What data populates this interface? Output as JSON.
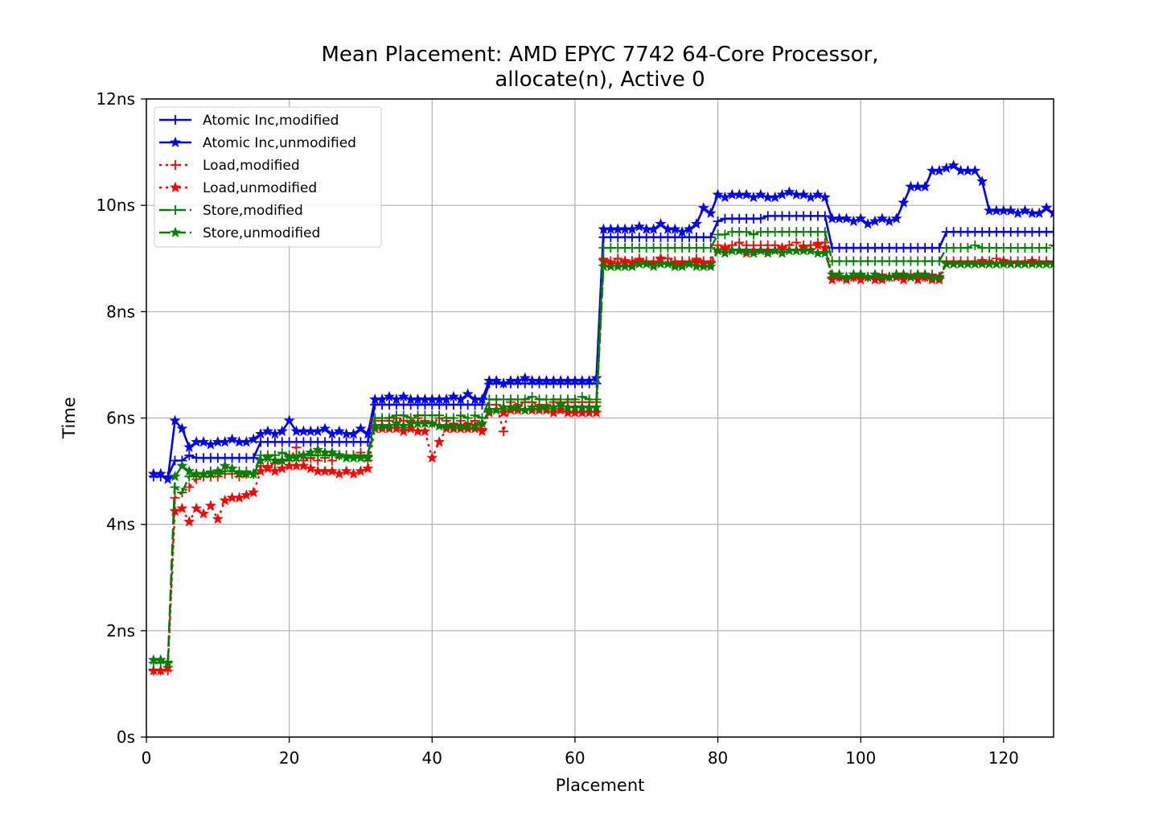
{
  "chart_data": {
    "type": "line",
    "title_line1": "Mean Placement: AMD EPYC 7742 64-Core Processor,",
    "title_line2": "allocate(n), Active 0",
    "xlabel": "Placement",
    "ylabel": "Time",
    "xlim": [
      0,
      127
    ],
    "ylim": [
      0,
      12
    ],
    "xticks": [
      0,
      20,
      40,
      60,
      80,
      100,
      120
    ],
    "xtick_labels": [
      "0",
      "20",
      "40",
      "60",
      "80",
      "100",
      "120"
    ],
    "yticks": [
      0,
      2,
      4,
      6,
      8,
      10,
      12
    ],
    "ytick_labels": [
      "0s",
      "2ns",
      "4ns",
      "6ns",
      "8ns",
      "10ns",
      "12ns"
    ],
    "grid": true,
    "legend_position": "top-left",
    "x": [
      1,
      2,
      3,
      4,
      5,
      6,
      7,
      8,
      9,
      10,
      11,
      12,
      13,
      14,
      15,
      16,
      17,
      18,
      19,
      20,
      21,
      22,
      23,
      24,
      25,
      26,
      27,
      28,
      29,
      30,
      31,
      32,
      33,
      34,
      35,
      36,
      37,
      38,
      39,
      40,
      41,
      42,
      43,
      44,
      45,
      46,
      47,
      48,
      49,
      50,
      51,
      52,
      53,
      54,
      55,
      56,
      57,
      58,
      59,
      60,
      61,
      62,
      63,
      64,
      65,
      66,
      67,
      68,
      69,
      70,
      71,
      72,
      73,
      74,
      75,
      76,
      77,
      78,
      79,
      80,
      81,
      82,
      83,
      84,
      85,
      86,
      87,
      88,
      89,
      90,
      91,
      92,
      93,
      94,
      95,
      96,
      97,
      98,
      99,
      100,
      101,
      102,
      103,
      104,
      105,
      106,
      107,
      108,
      109,
      110,
      111,
      112,
      113,
      114,
      115,
      116,
      117,
      118,
      119,
      120,
      121,
      122,
      123,
      124,
      125,
      126,
      127
    ],
    "series": [
      {
        "name": "Atomic Inc,modified",
        "color": "#0000ff",
        "linestyle": "solid",
        "marker": "plus",
        "values": [
          4.9,
          4.9,
          4.9,
          5.2,
          5.2,
          5.3,
          5.25,
          5.25,
          5.25,
          5.25,
          5.25,
          5.25,
          5.25,
          5.25,
          5.25,
          5.55,
          5.55,
          5.55,
          5.55,
          5.55,
          5.55,
          5.55,
          5.55,
          5.55,
          5.55,
          5.55,
          5.55,
          5.55,
          5.55,
          5.55,
          5.55,
          6.25,
          6.25,
          6.25,
          6.25,
          6.25,
          6.25,
          6.25,
          6.25,
          6.25,
          6.25,
          6.25,
          6.25,
          6.25,
          6.25,
          6.25,
          6.25,
          6.65,
          6.65,
          6.65,
          6.65,
          6.65,
          6.65,
          6.65,
          6.65,
          6.65,
          6.65,
          6.65,
          6.65,
          6.65,
          6.65,
          6.65,
          6.65,
          9.4,
          9.4,
          9.4,
          9.4,
          9.4,
          9.4,
          9.4,
          9.4,
          9.4,
          9.4,
          9.4,
          9.4,
          9.4,
          9.4,
          9.4,
          9.4,
          9.7,
          9.75,
          9.75,
          9.75,
          9.75,
          9.75,
          9.75,
          9.8,
          9.8,
          9.8,
          9.8,
          9.8,
          9.8,
          9.8,
          9.8,
          9.8,
          9.2,
          9.2,
          9.2,
          9.2,
          9.2,
          9.2,
          9.2,
          9.2,
          9.2,
          9.2,
          9.2,
          9.2,
          9.2,
          9.2,
          9.2,
          9.2,
          9.5,
          9.5,
          9.5,
          9.5,
          9.5,
          9.5,
          9.5,
          9.5,
          9.5,
          9.5,
          9.5,
          9.5,
          9.5,
          9.5,
          9.5,
          9.5
        ]
      },
      {
        "name": "Atomic Inc,unmodified",
        "color": "#0000ff",
        "linestyle": "solid",
        "marker": "star",
        "values": [
          4.95,
          4.95,
          4.85,
          5.95,
          5.8,
          5.45,
          5.55,
          5.55,
          5.5,
          5.55,
          5.55,
          5.6,
          5.55,
          5.55,
          5.6,
          5.7,
          5.75,
          5.7,
          5.75,
          5.95,
          5.75,
          5.75,
          5.75,
          5.75,
          5.8,
          5.7,
          5.75,
          5.7,
          5.7,
          5.8,
          5.7,
          6.35,
          6.35,
          6.4,
          6.35,
          6.4,
          6.35,
          6.35,
          6.35,
          6.35,
          6.35,
          6.35,
          6.4,
          6.35,
          6.45,
          6.35,
          6.35,
          6.7,
          6.7,
          6.65,
          6.7,
          6.7,
          6.75,
          6.7,
          6.7,
          6.7,
          6.7,
          6.7,
          6.7,
          6.7,
          6.7,
          6.7,
          6.75,
          9.55,
          9.55,
          9.55,
          9.55,
          9.55,
          9.6,
          9.55,
          9.55,
          9.65,
          9.55,
          9.55,
          9.5,
          9.55,
          9.65,
          9.95,
          9.85,
          10.2,
          10.15,
          10.2,
          10.2,
          10.2,
          10.15,
          10.2,
          10.15,
          10.15,
          10.2,
          10.25,
          10.2,
          10.2,
          10.15,
          10.2,
          10.15,
          9.75,
          9.75,
          9.75,
          9.7,
          9.75,
          9.65,
          9.7,
          9.75,
          9.7,
          9.75,
          10.05,
          10.35,
          10.35,
          10.35,
          10.65,
          10.65,
          10.7,
          10.75,
          10.65,
          10.65,
          10.65,
          10.45,
          9.9,
          9.9,
          9.9,
          9.9,
          9.85,
          9.9,
          9.85,
          9.85,
          9.95,
          9.85
        ]
      },
      {
        "name": "Load,modified",
        "color": "#ff0000",
        "linestyle": "dotted",
        "marker": "plus",
        "values": [
          1.25,
          1.25,
          1.25,
          4.5,
          4.6,
          4.7,
          4.85,
          4.9,
          4.9,
          4.9,
          4.95,
          4.95,
          4.9,
          4.95,
          4.95,
          5.1,
          5.1,
          5.15,
          5.2,
          5.2,
          5.45,
          5.2,
          5.25,
          5.2,
          5.25,
          5.2,
          5.3,
          5.3,
          5.3,
          5.35,
          5.2,
          5.95,
          5.95,
          5.95,
          6.0,
          5.95,
          5.95,
          6.0,
          5.95,
          5.9,
          6.0,
          5.95,
          5.9,
          5.95,
          5.9,
          5.95,
          5.8,
          6.25,
          6.25,
          5.75,
          6.3,
          6.25,
          6.3,
          6.3,
          6.25,
          6.25,
          6.3,
          6.3,
          6.3,
          6.3,
          6.3,
          6.3,
          6.3,
          9.0,
          8.95,
          9.0,
          8.95,
          8.95,
          9.0,
          8.95,
          8.95,
          9.0,
          9.0,
          8.95,
          8.95,
          8.95,
          9.0,
          8.95,
          8.95,
          9.25,
          9.2,
          9.25,
          9.3,
          9.25,
          9.25,
          9.25,
          9.25,
          9.25,
          9.2,
          9.25,
          9.3,
          9.25,
          9.25,
          9.3,
          9.3,
          8.65,
          8.65,
          8.65,
          8.65,
          8.7,
          8.65,
          8.65,
          8.7,
          8.65,
          8.7,
          8.65,
          8.7,
          8.65,
          8.65,
          8.7,
          8.65,
          8.95,
          8.95,
          8.95,
          8.95,
          8.95,
          8.95,
          8.95,
          9.0,
          8.95,
          8.95,
          8.95,
          8.95,
          8.95,
          8.95,
          8.95,
          8.95
        ]
      },
      {
        "name": "Load,unmodified",
        "color": "#ff0000",
        "linestyle": "dotted",
        "marker": "star",
        "values": [
          1.25,
          1.25,
          1.3,
          4.25,
          4.3,
          4.05,
          4.3,
          4.2,
          4.35,
          4.1,
          4.45,
          4.5,
          4.5,
          4.55,
          4.6,
          5.0,
          5.05,
          5.0,
          5.05,
          5.1,
          5.1,
          5.1,
          5.05,
          5.0,
          5.0,
          5.0,
          4.95,
          5.0,
          4.95,
          5.0,
          5.05,
          5.8,
          5.8,
          5.8,
          5.8,
          5.75,
          5.8,
          5.75,
          5.75,
          5.25,
          5.55,
          5.8,
          5.8,
          5.8,
          5.8,
          5.8,
          5.75,
          6.1,
          6.15,
          6.1,
          6.15,
          6.15,
          6.15,
          6.15,
          6.15,
          6.15,
          6.1,
          6.15,
          6.1,
          6.1,
          6.1,
          6.1,
          6.1,
          8.95,
          8.9,
          8.9,
          8.95,
          8.9,
          8.95,
          8.9,
          8.9,
          9.0,
          8.9,
          8.9,
          8.9,
          8.9,
          8.95,
          8.9,
          8.9,
          9.15,
          9.2,
          9.15,
          9.15,
          9.1,
          9.15,
          9.15,
          9.15,
          9.15,
          9.2,
          9.15,
          9.15,
          9.2,
          9.15,
          9.25,
          9.2,
          8.6,
          8.65,
          8.6,
          8.65,
          8.6,
          8.65,
          8.6,
          8.6,
          8.65,
          8.65,
          8.6,
          8.65,
          8.6,
          8.65,
          8.6,
          8.6,
          8.9,
          8.9,
          8.9,
          8.9,
          8.9,
          8.95,
          8.9,
          8.9,
          8.95,
          8.9,
          8.9,
          8.9,
          8.95,
          8.9,
          8.9,
          8.9
        ]
      },
      {
        "name": "Store,modified",
        "color": "#008000",
        "linestyle": "dashed",
        "marker": "plus",
        "values": [
          1.4,
          1.4,
          1.4,
          4.7,
          4.6,
          4.9,
          4.95,
          4.95,
          5.0,
          4.95,
          5.0,
          5.0,
          5.0,
          5.0,
          4.95,
          5.3,
          5.3,
          5.3,
          5.35,
          5.3,
          5.3,
          5.3,
          5.3,
          5.3,
          5.3,
          5.3,
          5.3,
          5.3,
          5.3,
          5.3,
          5.3,
          6.0,
          6.0,
          6.0,
          6.05,
          6.05,
          6.0,
          6.05,
          6.05,
          6.05,
          6.05,
          6.0,
          6.0,
          6.05,
          6.0,
          6.05,
          6.0,
          6.35,
          6.35,
          6.35,
          6.35,
          6.35,
          6.35,
          6.4,
          6.35,
          6.35,
          6.35,
          6.35,
          6.35,
          6.35,
          6.4,
          6.35,
          6.35,
          9.2,
          9.2,
          9.2,
          9.2,
          9.2,
          9.2,
          9.2,
          9.2,
          9.2,
          9.2,
          9.2,
          9.2,
          9.2,
          9.2,
          9.2,
          9.2,
          9.45,
          9.45,
          9.5,
          9.5,
          9.5,
          9.45,
          9.5,
          9.5,
          9.5,
          9.5,
          9.5,
          9.5,
          9.5,
          9.5,
          9.5,
          9.5,
          8.95,
          8.95,
          8.95,
          8.95,
          8.95,
          8.95,
          8.95,
          8.95,
          8.95,
          8.95,
          8.95,
          8.95,
          8.95,
          8.95,
          8.95,
          8.95,
          9.2,
          9.2,
          9.2,
          9.2,
          9.25,
          9.2,
          9.2,
          9.2,
          9.2,
          9.2,
          9.2,
          9.2,
          9.2,
          9.2,
          9.2,
          9.25
        ]
      },
      {
        "name": "Store,unmodified",
        "color": "#008000",
        "linestyle": "dashed",
        "marker": "star",
        "values": [
          1.45,
          1.45,
          1.4,
          4.9,
          5.1,
          5.0,
          4.95,
          4.95,
          4.95,
          5.0,
          5.1,
          5.05,
          4.95,
          4.95,
          4.95,
          5.2,
          5.25,
          5.2,
          5.2,
          5.25,
          5.25,
          5.3,
          5.35,
          5.4,
          5.35,
          5.35,
          5.3,
          5.25,
          5.25,
          5.25,
          5.25,
          5.85,
          5.85,
          5.85,
          5.9,
          5.85,
          5.9,
          5.9,
          5.9,
          5.9,
          5.85,
          5.85,
          5.85,
          5.85,
          5.85,
          5.85,
          5.9,
          6.15,
          6.15,
          6.2,
          6.2,
          6.2,
          6.15,
          6.2,
          6.2,
          6.2,
          6.2,
          6.25,
          6.2,
          6.2,
          6.2,
          6.2,
          6.2,
          8.85,
          8.85,
          8.85,
          8.85,
          8.85,
          8.9,
          8.9,
          8.85,
          8.9,
          8.9,
          8.85,
          8.85,
          8.9,
          8.85,
          8.85,
          8.85,
          9.15,
          9.1,
          9.15,
          9.15,
          9.15,
          9.1,
          9.15,
          9.1,
          9.15,
          9.1,
          9.15,
          9.15,
          9.15,
          9.15,
          9.1,
          9.1,
          8.7,
          8.7,
          8.65,
          8.7,
          8.7,
          8.65,
          8.7,
          8.65,
          8.65,
          8.7,
          8.7,
          8.65,
          8.7,
          8.7,
          8.65,
          8.65,
          8.9,
          8.9,
          8.9,
          8.9,
          8.9,
          8.9,
          8.9,
          8.9,
          8.9,
          8.9,
          8.9,
          8.9,
          8.9,
          8.9,
          8.9,
          8.9
        ]
      }
    ]
  }
}
